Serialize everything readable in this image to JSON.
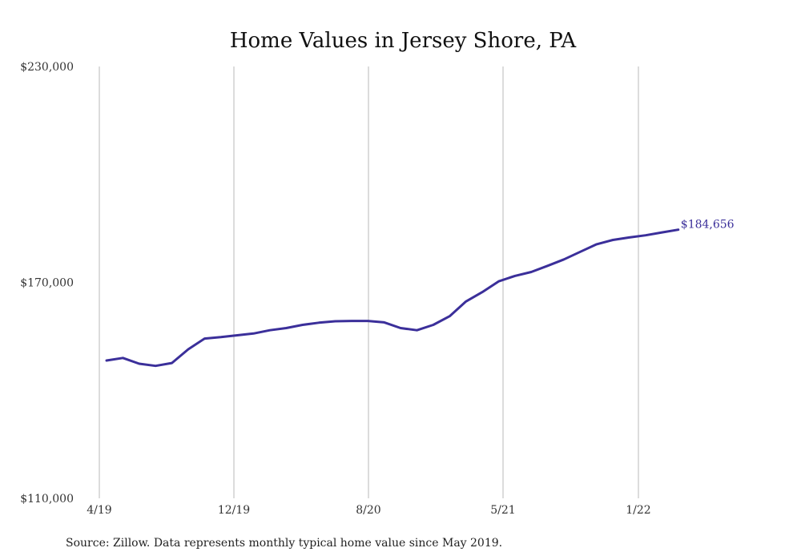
{
  "chart_data": {
    "type": "line",
    "title": "Home Values in Jersey Shore, PA",
    "xlabel": "",
    "ylabel": "",
    "x_ticks": [
      "4/19",
      "12/19",
      "8/20",
      "5/21",
      "1/22"
    ],
    "y_ticks": [
      "$110,000",
      "$170,000",
      "$230,000"
    ],
    "ylim": [
      110000,
      230000
    ],
    "grid": "vertical",
    "line_color": "#3b2f9a",
    "x": [
      "5/19",
      "6/19",
      "7/19",
      "8/19",
      "9/19",
      "10/19",
      "11/19",
      "12/19",
      "1/20",
      "2/20",
      "3/20",
      "4/20",
      "5/20",
      "6/20",
      "7/20",
      "8/20",
      "9/20",
      "10/20",
      "11/20",
      "12/20",
      "1/21",
      "2/21",
      "3/21",
      "4/21",
      "5/21",
      "6/21",
      "7/21",
      "8/21",
      "9/21",
      "10/21",
      "11/21",
      "12/21",
      "1/22",
      "2/22",
      "3/22",
      "4/22"
    ],
    "series": [
      {
        "values": [
          148300,
          149000,
          147400,
          146800,
          147600,
          151400,
          154400,
          154800,
          155300,
          155800,
          156700,
          157300,
          158200,
          158800,
          159200,
          159300,
          159300,
          158900,
          157300,
          156700,
          158200,
          160600,
          164700,
          167300,
          170300,
          171800,
          172900,
          174600,
          176400,
          178500,
          180600,
          181800,
          182500,
          183100,
          183900,
          184656
        ]
      }
    ],
    "end_label": "$184,656",
    "source_note": "Source: Zillow. Data represents monthly typical home value since May 2019."
  }
}
